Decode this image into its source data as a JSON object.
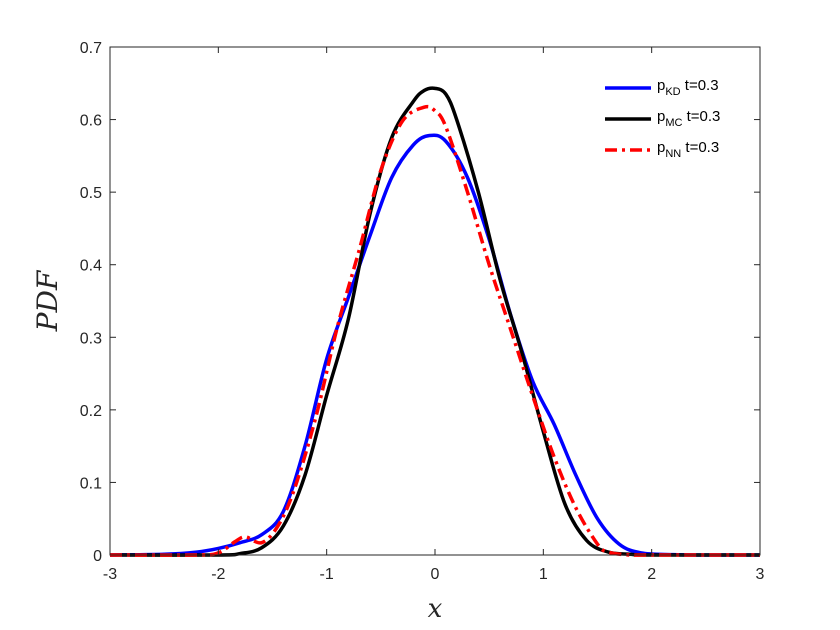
{
  "chart_data": {
    "type": "line",
    "title": "",
    "xlabel": "x",
    "ylabel": "PDF",
    "xlim": [
      -3,
      3
    ],
    "ylim": [
      0,
      0.7
    ],
    "xticks": [
      -3,
      -2,
      -1,
      0,
      1,
      2,
      3
    ],
    "xtick_labels": [
      "-3",
      "-2",
      "-1",
      "0",
      "1",
      "2",
      "3"
    ],
    "yticks": [
      0,
      0.1,
      0.2,
      0.3,
      0.4,
      0.5,
      0.6,
      0.7
    ],
    "ytick_labels": [
      "0",
      "0.1",
      "0.2",
      "0.3",
      "0.4",
      "0.5",
      "0.6",
      "0.7"
    ],
    "grid": false,
    "legend_position": "top-right",
    "series": [
      {
        "name": "p_KD t=0.3",
        "legend_main": "p",
        "legend_sub": "KD",
        "legend_suffix": " t=0.3",
        "color": "#0000ff",
        "style": "solid",
        "x": [
          -3,
          -2.5,
          -2.2,
          -2,
          -1.8,
          -1.6,
          -1.4,
          -1.2,
          -1,
          -0.8,
          -0.6,
          -0.4,
          -0.2,
          -0.05,
          0.1,
          0.3,
          0.5,
          0.7,
          0.9,
          1.1,
          1.3,
          1.5,
          1.7,
          1.9,
          2.2,
          2.5,
          3
        ],
        "y": [
          0,
          0.001,
          0.004,
          0.009,
          0.017,
          0.028,
          0.06,
          0.15,
          0.27,
          0.355,
          0.44,
          0.52,
          0.565,
          0.578,
          0.57,
          0.52,
          0.435,
          0.33,
          0.24,
          0.18,
          0.11,
          0.05,
          0.015,
          0.003,
          0.0005,
          0,
          0
        ]
      },
      {
        "name": "p_MC t=0.3",
        "legend_main": "p",
        "legend_sub": "MC",
        "legend_suffix": " t=0.3",
        "color": "#000000",
        "style": "solid",
        "x": [
          -3,
          -2,
          -1.8,
          -1.6,
          -1.4,
          -1.2,
          -1,
          -0.8,
          -0.6,
          -0.4,
          -0.2,
          -0.1,
          0,
          0.1,
          0.2,
          0.4,
          0.6,
          0.8,
          1,
          1.2,
          1.4,
          1.6,
          1.8,
          2,
          3
        ],
        "y": [
          0,
          0,
          0.002,
          0.01,
          0.04,
          0.11,
          0.22,
          0.325,
          0.47,
          0.575,
          0.625,
          0.64,
          0.643,
          0.635,
          0.6,
          0.5,
          0.38,
          0.28,
          0.17,
          0.07,
          0.02,
          0.004,
          0.001,
          0,
          0
        ]
      },
      {
        "name": "p_NN t=0.3",
        "legend_main": "p",
        "legend_sub": "NN",
        "legend_suffix": " t=0.3",
        "color": "#ff0000",
        "style": "dashdot",
        "x": [
          -3,
          -2.2,
          -2,
          -1.85,
          -1.75,
          -1.6,
          -1.45,
          -1.3,
          -1.1,
          -0.9,
          -0.7,
          -0.5,
          -0.3,
          -0.1,
          0,
          0.1,
          0.3,
          0.5,
          0.7,
          0.9,
          1.1,
          1.3,
          1.5,
          1.6,
          1.8,
          2,
          3
        ],
        "y": [
          0,
          0,
          0.003,
          0.018,
          0.025,
          0.017,
          0.04,
          0.09,
          0.19,
          0.315,
          0.42,
          0.53,
          0.598,
          0.617,
          0.612,
          0.59,
          0.5,
          0.4,
          0.31,
          0.22,
          0.135,
          0.065,
          0.015,
          0.004,
          0,
          0,
          0
        ]
      }
    ]
  }
}
